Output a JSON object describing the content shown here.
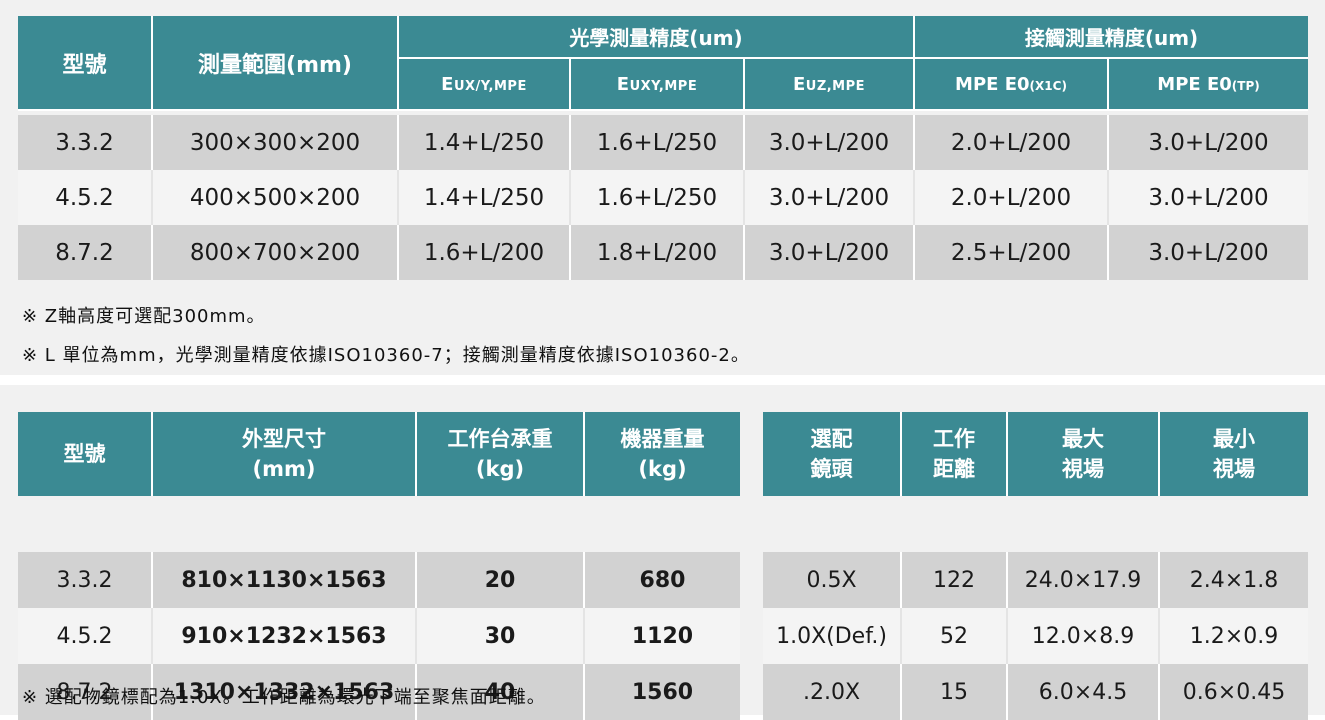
{
  "colors": {
    "header_bg": "#3b8a93",
    "row_dark": "#d2d2d2",
    "row_light": "#f4f4f4",
    "panel_bg": "#f1f1f1"
  },
  "accuracy_table": {
    "headers": {
      "model": "型號",
      "range": "測量範圍(mm)",
      "optical_group": "光學測量精度(um)",
      "contact_group": "接觸測量精度(um)",
      "eux_main": "E",
      "eux_sub": "UX/Y,MPE",
      "euxy_main": "E",
      "euxy_sub": "UXY,MPE",
      "euz_main": "E",
      "euz_sub": "UZ,MPE",
      "mpe1_main": "MPE E0",
      "mpe1_sub": "(X1C)",
      "mpe2_main": "MPE E0",
      "mpe2_sub": "(TP)"
    },
    "rows": [
      [
        "3.3.2",
        "300×300×200",
        "1.4+L/250",
        "1.6+L/250",
        "3.0+L/200",
        "2.0+L/200",
        "3.0+L/200"
      ],
      [
        "4.5.2",
        "400×500×200",
        "1.4+L/250",
        "1.6+L/250",
        "3.0+L/200",
        "2.0+L/200",
        "3.0+L/200"
      ],
      [
        "8.7.2",
        "800×700×200",
        "1.6+L/200",
        "1.8+L/200",
        "3.0+L/200",
        "2.5+L/200",
        "3.0+L/200"
      ]
    ]
  },
  "notes": [
    "※ Z軸高度可選配300mm。",
    "※ L 單位為mm，光學測量精度依據ISO10360-7；接觸測量精度依據ISO10360-2。"
  ],
  "spec_table": {
    "headers": [
      [
        "型號"
      ],
      [
        "外型尺寸",
        "(mm)"
      ],
      [
        "工作台承重",
        "(kg)"
      ],
      [
        "機器重量",
        "(kg)"
      ]
    ],
    "rows": [
      [
        "3.3.2",
        "810×1130×1563",
        "20",
        "680"
      ],
      [
        "4.5.2",
        "910×1232×1563",
        "30",
        "1120"
      ],
      [
        "8.7.2",
        "1310×1332×1563",
        "40",
        "1560"
      ]
    ]
  },
  "lens_table": {
    "headers": [
      [
        "選配",
        "鏡頭"
      ],
      [
        "工作",
        "距離"
      ],
      [
        "最大",
        "視場"
      ],
      [
        "最小",
        "視場"
      ]
    ],
    "rows": [
      [
        "0.5X",
        "122",
        "24.0×17.9",
        "2.4×1.8"
      ],
      [
        "1.0X(Def.)",
        "52",
        "12.0×8.9",
        "1.2×0.9"
      ],
      [
        ".2.0X",
        "15",
        "6.0×4.5",
        "0.6×0.45"
      ]
    ]
  },
  "footer_note": "※ 選配物鏡標配為1.0X。工作距離為環光下端至聚焦面距離。"
}
